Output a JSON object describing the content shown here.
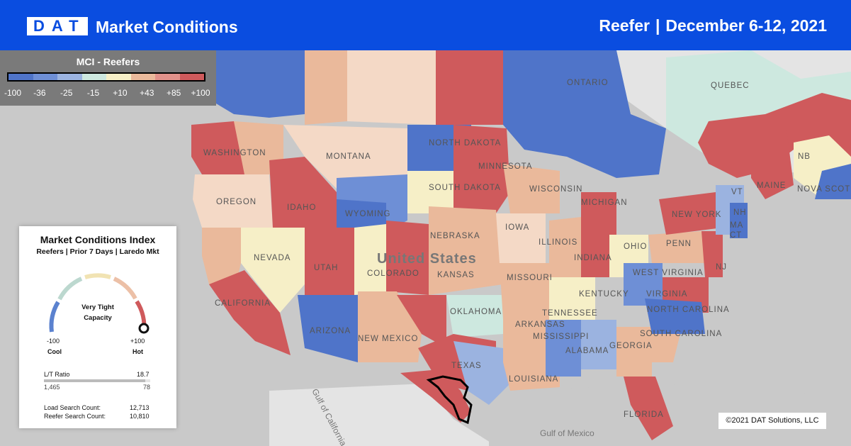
{
  "header": {
    "logo": "DAT",
    "title": "Market Conditions",
    "equipment": "Reefer",
    "separator": "|",
    "date_range": "December 6-12, 2021"
  },
  "legend": {
    "title": "MCI - Reefers",
    "ticks": [
      "-100",
      "-36",
      "-25",
      "-15",
      "+10",
      "+43",
      "+85",
      "+100"
    ],
    "colors": [
      "#4f74c9",
      "#6e8fd6",
      "#9bb3e0",
      "#cde8df",
      "#f6efc7",
      "#eab99b",
      "#e1918a",
      "#cf5a5c"
    ]
  },
  "panel": {
    "title": "Market Conditions Index",
    "subtitle": "Reefers | Prior 7 Days | Laredo Mkt",
    "status_line1": "Very Tight",
    "status_line2": "Capacity",
    "min_value": "-100",
    "min_label": "Cool",
    "max_value": "+100",
    "max_label": "Hot",
    "index_value": 100,
    "lt_label": "L/T Ratio",
    "lt_value": "18.7",
    "loads": "1,465",
    "trucks": "78",
    "load_search_label": "Load Search Count:",
    "load_search_value": "12,713",
    "reefer_search_label": "Reefer Search Count:",
    "reefer_search_value": "10,810"
  },
  "map": {
    "labels": [
      "WASHINGTON",
      "OREGON",
      "IDAHO",
      "MONTANA",
      "WYOMING",
      "NORTH DAKOTA",
      "SOUTH DAKOTA",
      "NEBRASKA",
      "KANSAS",
      "COLORADO",
      "UTAH",
      "NEVADA",
      "CALIFORNIA",
      "ARIZONA",
      "NEW MEXICO",
      "TEXAS",
      "OKLAHOMA",
      "MINNESOTA",
      "IOWA",
      "MISSOURI",
      "ARKANSAS",
      "LOUISIANA",
      "MISSISSIPPI",
      "ALABAMA",
      "GEORGIA",
      "FLORIDA",
      "TENNESSEE",
      "KENTUCKY",
      "ILLINOIS",
      "INDIANA",
      "OHIO",
      "MICHIGAN",
      "WISCONSIN",
      "WEST VIRGINIA",
      "VIRGINIA",
      "NORTH CAROLINA",
      "SOUTH CAROLINA",
      "PENN",
      "NEW YORK",
      "MAINE",
      "NB",
      "NOVA SCOTIA",
      "QUEBEC",
      "ONTARIO",
      "NJ",
      "VT",
      "NH",
      "MA",
      "CT",
      "United States"
    ],
    "water_labels": [
      "Gulf of California",
      "Gulf of Mexico"
    ],
    "copyright": "©2021 DAT Solutions, LLC"
  }
}
